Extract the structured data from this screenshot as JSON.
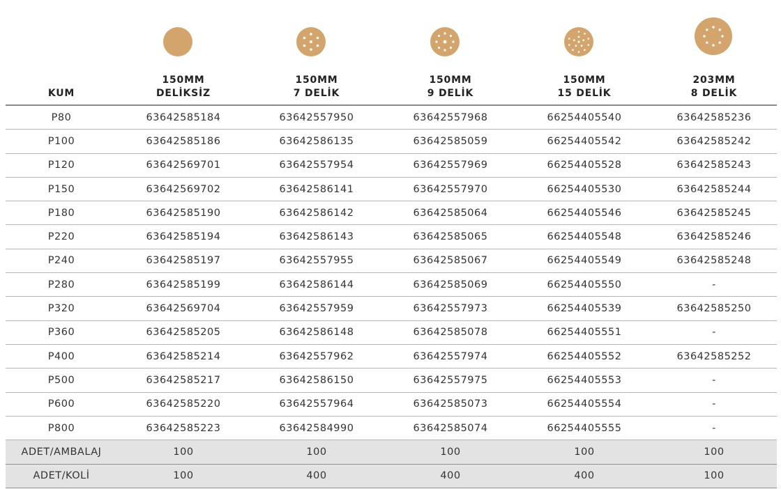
{
  "table": {
    "headers": [
      {
        "line1": "KUM",
        "line2": ""
      },
      {
        "line1": "150MM",
        "line2": "DELİKSİZ"
      },
      {
        "line1": "150MM",
        "line2": "7 DELİK"
      },
      {
        "line1": "150MM",
        "line2": "9 DELİK"
      },
      {
        "line1": "150MM",
        "line2": "15 DELİK"
      },
      {
        "line1": "203MM",
        "line2": "8 DELİK"
      }
    ],
    "disc_icons": [
      "disc-no-holes-icon",
      "disc-7-holes-icon",
      "disc-9-holes-icon",
      "disc-15-holes-icon",
      "disc-8-holes-large-icon"
    ],
    "disc_color": "#d3a46b",
    "rows": [
      [
        "P80",
        "63642585184",
        "63642557950",
        "63642557968",
        "66254405540",
        "63642585236"
      ],
      [
        "P100",
        "63642585186",
        "63642586135",
        "63642585059",
        "66254405542",
        "63642585242"
      ],
      [
        "P120",
        "63642569701",
        "63642557954",
        "63642557969",
        "66254405528",
        "63642585243"
      ],
      [
        "P150",
        "63642569702",
        "63642586141",
        "63642557970",
        "66254405530",
        "63642585244"
      ],
      [
        "P180",
        "63642585190",
        "63642586142",
        "63642585064",
        "66254405546",
        "63642585245"
      ],
      [
        "P220",
        "63642585194",
        "63642586143",
        "63642585065",
        "66254405548",
        "63642585246"
      ],
      [
        "P240",
        "63642585197",
        "63642557955",
        "63642585067",
        "66254405549",
        "63642585248"
      ],
      [
        "P280",
        "63642585199",
        "63642586144",
        "63642585069",
        "66254405550",
        "-"
      ],
      [
        "P320",
        "63642569704",
        "63642557959",
        "63642557973",
        "66254405539",
        "63642585250"
      ],
      [
        "P360",
        "63642585205",
        "63642586148",
        "63642585078",
        "66254405551",
        "-"
      ],
      [
        "P400",
        "63642585214",
        "63642557962",
        "63642557974",
        "66254405552",
        "63642585252"
      ],
      [
        "P500",
        "63642585217",
        "63642586150",
        "63642557975",
        "66254405553",
        "-"
      ],
      [
        "P600",
        "63642585220",
        "63642557964",
        "63642585073",
        "66254405554",
        "-"
      ],
      [
        "P800",
        "63642585223",
        "63642584990",
        "63642585074",
        "66254405555",
        "-"
      ]
    ],
    "footer_rows": [
      [
        "ADET/AMBALAJ",
        "100",
        "100",
        "100",
        "100",
        "100"
      ],
      [
        "ADET/KOLİ",
        "100",
        "400",
        "400",
        "400",
        "100"
      ]
    ]
  }
}
